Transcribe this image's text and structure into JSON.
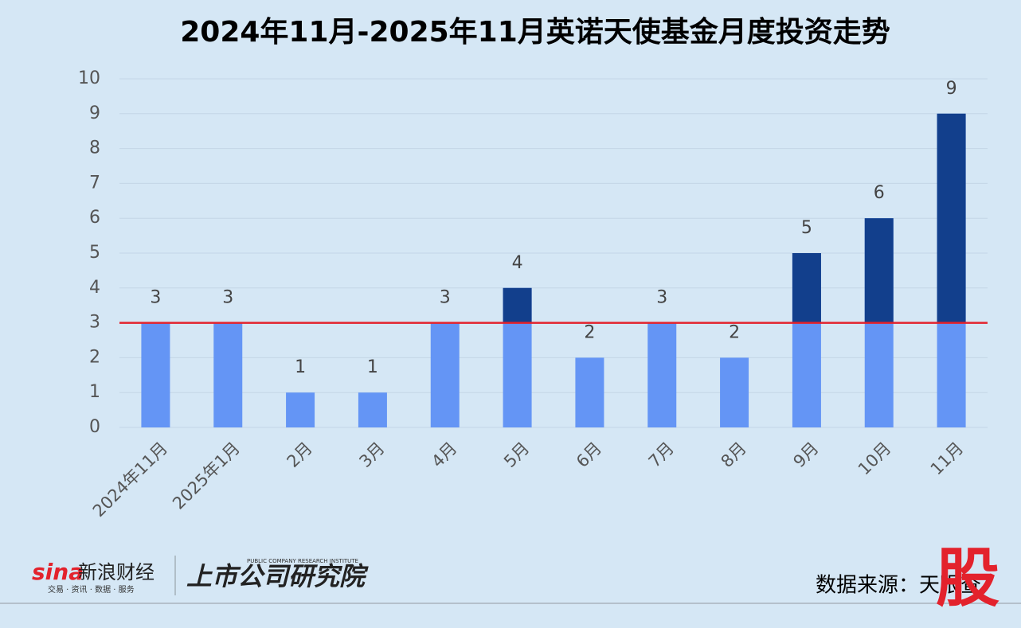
{
  "chart_data": {
    "type": "bar",
    "title": "2024年11月-2025年11月英诺天使基金月度投资走势",
    "categories": [
      "2024年11月",
      "2025年1月",
      "2月",
      "3月",
      "4月",
      "5月",
      "6月",
      "7月",
      "8月",
      "9月",
      "10月",
      "11月"
    ],
    "values": [
      3,
      3,
      1,
      1,
      3,
      4,
      2,
      3,
      2,
      5,
      6,
      9
    ],
    "color": "#6495f5",
    "above_color": "#123f8c",
    "reference_line": 3,
    "reference_color": "#e3222c",
    "ylim": [
      0,
      10
    ],
    "yticks": [
      0,
      1,
      2,
      3,
      4,
      5,
      6,
      7,
      8,
      9,
      10
    ],
    "grid": true
  },
  "footer": {
    "brand": "新浪财经",
    "brand_logo": "sina",
    "brand_tagline": "交易 · 资讯 · 数据 · 服务",
    "institute": "上市公司研究院",
    "institute_en": "PUBLIC COMPANY RESEARCH INSTITUTE",
    "source": "数据来源：天眼查",
    "stamp": "股"
  }
}
